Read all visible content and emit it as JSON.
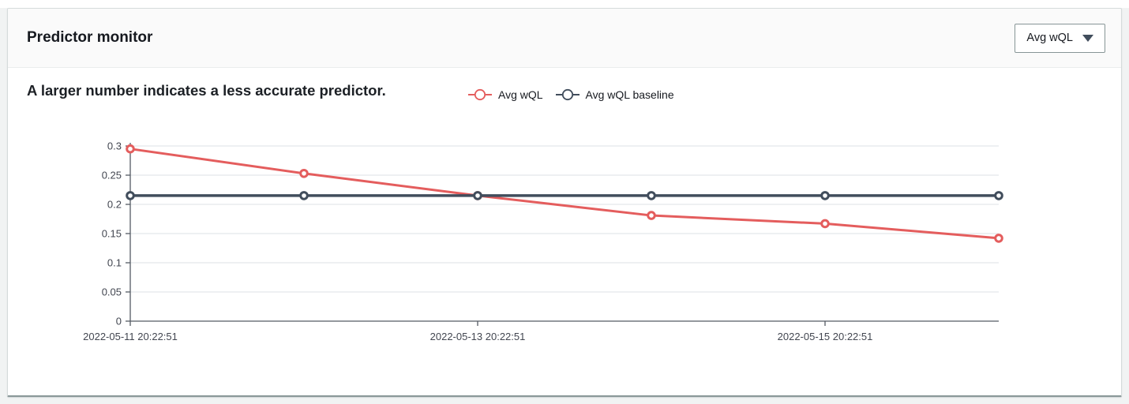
{
  "header": {
    "title": "Predictor monitor",
    "dropdown_label": "Avg wQL"
  },
  "subtitle": "A larger number indicates a less accurate predictor.",
  "colors": {
    "series_red": "#e45d5d",
    "series_dark": "#414d5c",
    "gridline": "#e9ebed",
    "axis": "#545b64",
    "tick_text": "#424650"
  },
  "chart_data": {
    "type": "line",
    "x": [
      "2022-05-11 20:22:51",
      "2022-05-12 20:22:51",
      "2022-05-13 20:22:51",
      "2022-05-14 20:22:51",
      "2022-05-15 20:22:51",
      "2022-05-16 20:22:51"
    ],
    "x_tick_indices": [
      0,
      2,
      4
    ],
    "x_tick_labels": [
      "2022-05-11 20:22:51",
      "2022-05-13 20:22:51",
      "2022-05-15 20:22:51"
    ],
    "series": [
      {
        "name": "Avg wQL",
        "color": "#e45d5d",
        "values": [
          0.295,
          0.253,
          0.215,
          0.181,
          0.167,
          0.142
        ]
      },
      {
        "name": "Avg wQL baseline",
        "color": "#414d5c",
        "values": [
          0.215,
          0.215,
          0.215,
          0.215,
          0.215,
          0.215
        ]
      }
    ],
    "title": "Predictor monitor",
    "subtitle": "A larger number indicates a less accurate predictor.",
    "xlabel": "",
    "ylabel": "",
    "ylim": [
      0,
      0.3
    ],
    "y_ticks": [
      0,
      0.05,
      0.1,
      0.15,
      0.2,
      0.25,
      0.3
    ],
    "grid": true,
    "legend_position": "top"
  }
}
